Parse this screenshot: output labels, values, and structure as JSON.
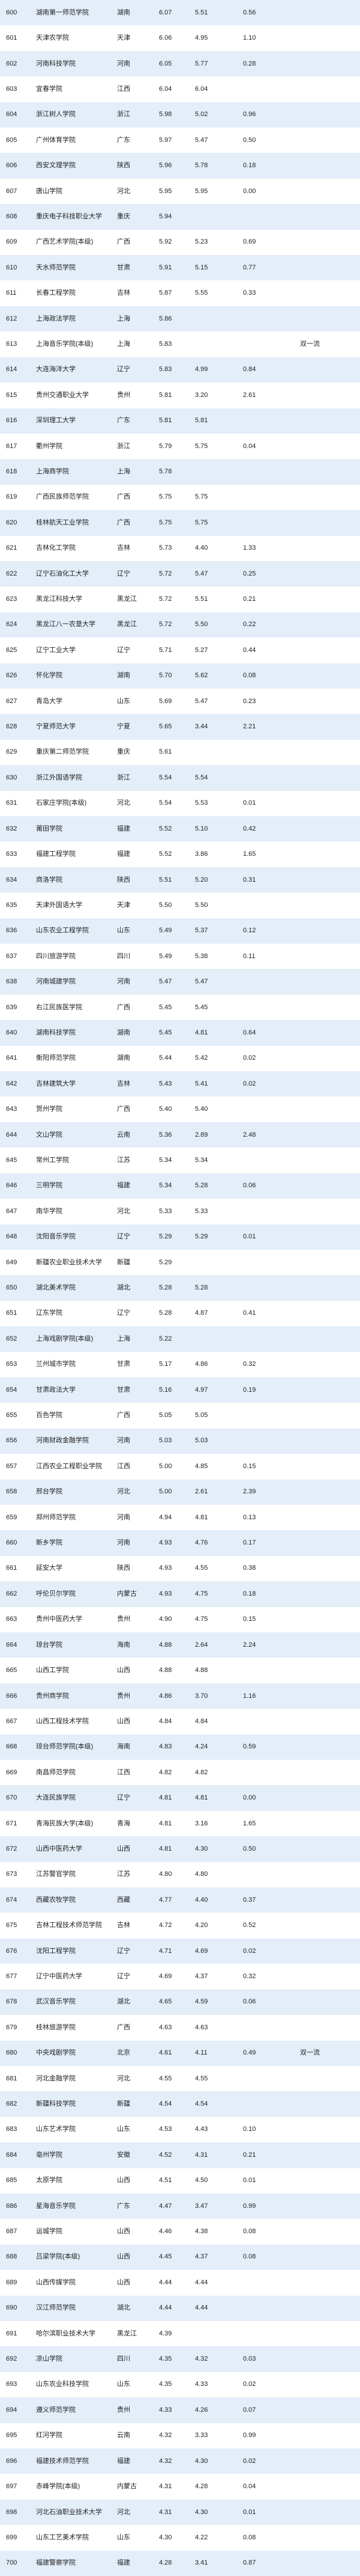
{
  "rows": [
    {
      "rank": "600",
      "name": "湖南第一师范学院",
      "province": "湖南",
      "s1": "6.07",
      "s2": "5.51",
      "s3": "0.56",
      "tag": ""
    },
    {
      "rank": "601",
      "name": "天津农学院",
      "province": "天津",
      "s1": "6.06",
      "s2": "4.95",
      "s3": "1.10",
      "tag": ""
    },
    {
      "rank": "602",
      "name": "河南科技学院",
      "province": "河南",
      "s1": "6.05",
      "s2": "5.77",
      "s3": "0.28",
      "tag": ""
    },
    {
      "rank": "603",
      "name": "宜春学院",
      "province": "江西",
      "s1": "6.04",
      "s2": "6.04",
      "s3": "",
      "tag": ""
    },
    {
      "rank": "604",
      "name": "浙江树人学院",
      "province": "浙江",
      "s1": "5.98",
      "s2": "5.02",
      "s3": "0.96",
      "tag": ""
    },
    {
      "rank": "605",
      "name": "广州体育学院",
      "province": "广东",
      "s1": "5.97",
      "s2": "5.47",
      "s3": "0.50",
      "tag": ""
    },
    {
      "rank": "606",
      "name": "西安文理学院",
      "province": "陕西",
      "s1": "5.96",
      "s2": "5.78",
      "s3": "0.18",
      "tag": ""
    },
    {
      "rank": "607",
      "name": "唐山学院",
      "province": "河北",
      "s1": "5.95",
      "s2": "5.95",
      "s3": "0.00",
      "tag": ""
    },
    {
      "rank": "608",
      "name": "重庆电子科技职业大学",
      "province": "重庆",
      "s1": "5.94",
      "s2": "",
      "s3": "",
      "tag": ""
    },
    {
      "rank": "609",
      "name": "广西艺术学院(本级)",
      "province": "广西",
      "s1": "5.92",
      "s2": "5.23",
      "s3": "0.69",
      "tag": ""
    },
    {
      "rank": "610",
      "name": "天水师范学院",
      "province": "甘肃",
      "s1": "5.91",
      "s2": "5.15",
      "s3": "0.77",
      "tag": ""
    },
    {
      "rank": "611",
      "name": "长春工程学院",
      "province": "吉林",
      "s1": "5.87",
      "s2": "5.55",
      "s3": "0.33",
      "tag": ""
    },
    {
      "rank": "612",
      "name": "上海政法学院",
      "province": "上海",
      "s1": "5.86",
      "s2": "",
      "s3": "",
      "tag": ""
    },
    {
      "rank": "613",
      "name": "上海音乐学院(本级)",
      "province": "上海",
      "s1": "5.83",
      "s2": "",
      "s3": "",
      "tag": "双一流"
    },
    {
      "rank": "614",
      "name": "大连海洋大学",
      "province": "辽宁",
      "s1": "5.83",
      "s2": "4.99",
      "s3": "0.84",
      "tag": ""
    },
    {
      "rank": "615",
      "name": "贵州交通职业大学",
      "province": "贵州",
      "s1": "5.81",
      "s2": "3.20",
      "s3": "2.61",
      "tag": ""
    },
    {
      "rank": "616",
      "name": "深圳理工大学",
      "province": "广东",
      "s1": "5.81",
      "s2": "5.81",
      "s3": "",
      "tag": ""
    },
    {
      "rank": "617",
      "name": "衢州学院",
      "province": "浙江",
      "s1": "5.79",
      "s2": "5.75",
      "s3": "0.04",
      "tag": ""
    },
    {
      "rank": "618",
      "name": "上海商学院",
      "province": "上海",
      "s1": "5.78",
      "s2": "",
      "s3": "",
      "tag": ""
    },
    {
      "rank": "619",
      "name": "广西民族师范学院",
      "province": "广西",
      "s1": "5.75",
      "s2": "5.75",
      "s3": "",
      "tag": ""
    },
    {
      "rank": "620",
      "name": "桂林航天工业学院",
      "province": "广西",
      "s1": "5.75",
      "s2": "5.75",
      "s3": "",
      "tag": ""
    },
    {
      "rank": "621",
      "name": "吉林化工学院",
      "province": "吉林",
      "s1": "5.73",
      "s2": "4.40",
      "s3": "1.33",
      "tag": ""
    },
    {
      "rank": "622",
      "name": "辽宁石油化工大学",
      "province": "辽宁",
      "s1": "5.72",
      "s2": "5.47",
      "s3": "0.25",
      "tag": ""
    },
    {
      "rank": "623",
      "name": "黑龙江科技大学",
      "province": "黑龙江",
      "s1": "5.72",
      "s2": "5.51",
      "s3": "0.21",
      "tag": ""
    },
    {
      "rank": "624",
      "name": "黑龙江八一农垦大学",
      "province": "黑龙江",
      "s1": "5.72",
      "s2": "5.50",
      "s3": "0.22",
      "tag": ""
    },
    {
      "rank": "625",
      "name": "辽宁工业大学",
      "province": "辽宁",
      "s1": "5.71",
      "s2": "5.27",
      "s3": "0.44",
      "tag": ""
    },
    {
      "rank": "626",
      "name": "怀化学院",
      "province": "湖南",
      "s1": "5.70",
      "s2": "5.62",
      "s3": "0.08",
      "tag": ""
    },
    {
      "rank": "627",
      "name": "青岛大学",
      "province": "山东",
      "s1": "5.69",
      "s2": "5.47",
      "s3": "0.23",
      "tag": ""
    },
    {
      "rank": "628",
      "name": "宁夏师范大学",
      "province": "宁夏",
      "s1": "5.65",
      "s2": "3.44",
      "s3": "2.21",
      "tag": ""
    },
    {
      "rank": "629",
      "name": "重庆第二师范学院",
      "province": "重庆",
      "s1": "5.61",
      "s2": "",
      "s3": "",
      "tag": ""
    },
    {
      "rank": "630",
      "name": "浙江外国语学院",
      "province": "浙江",
      "s1": "5.54",
      "s2": "5.54",
      "s3": "",
      "tag": ""
    },
    {
      "rank": "631",
      "name": "石家庄学院(本级)",
      "province": "河北",
      "s1": "5.54",
      "s2": "5.53",
      "s3": "0.01",
      "tag": ""
    },
    {
      "rank": "632",
      "name": "莆田学院",
      "province": "福建",
      "s1": "5.52",
      "s2": "5.10",
      "s3": "0.42",
      "tag": ""
    },
    {
      "rank": "633",
      "name": "福建工程学院",
      "province": "福建",
      "s1": "5.52",
      "s2": "3.86",
      "s3": "1.65",
      "tag": ""
    },
    {
      "rank": "634",
      "name": "商洛学院",
      "province": "陕西",
      "s1": "5.51",
      "s2": "5.20",
      "s3": "0.31",
      "tag": ""
    },
    {
      "rank": "635",
      "name": "天津外国语大学",
      "province": "天津",
      "s1": "5.50",
      "s2": "5.50",
      "s3": "",
      "tag": ""
    },
    {
      "rank": "636",
      "name": "山东农业工程学院",
      "province": "山东",
      "s1": "5.49",
      "s2": "5.37",
      "s3": "0.12",
      "tag": ""
    },
    {
      "rank": "637",
      "name": "四川旅游学院",
      "province": "四川",
      "s1": "5.49",
      "s2": "5.38",
      "s3": "0.11",
      "tag": ""
    },
    {
      "rank": "638",
      "name": "河南城建学院",
      "province": "河南",
      "s1": "5.47",
      "s2": "5.47",
      "s3": "",
      "tag": ""
    },
    {
      "rank": "639",
      "name": "右江民族医学院",
      "province": "广西",
      "s1": "5.45",
      "s2": "5.45",
      "s3": "",
      "tag": ""
    },
    {
      "rank": "640",
      "name": "湖南科技学院",
      "province": "湖南",
      "s1": "5.45",
      "s2": "4.81",
      "s3": "0.64",
      "tag": ""
    },
    {
      "rank": "641",
      "name": "衡阳师范学院",
      "province": "湖南",
      "s1": "5.44",
      "s2": "5.42",
      "s3": "0.02",
      "tag": ""
    },
    {
      "rank": "642",
      "name": "吉林建筑大学",
      "province": "吉林",
      "s1": "5.43",
      "s2": "5.41",
      "s3": "0.02",
      "tag": ""
    },
    {
      "rank": "643",
      "name": "贺州学院",
      "province": "广西",
      "s1": "5.40",
      "s2": "5.40",
      "s3": "",
      "tag": ""
    },
    {
      "rank": "644",
      "name": "文山学院",
      "province": "云南",
      "s1": "5.36",
      "s2": "2.89",
      "s3": "2.48",
      "tag": ""
    },
    {
      "rank": "645",
      "name": "常州工学院",
      "province": "江苏",
      "s1": "5.34",
      "s2": "5.34",
      "s3": "",
      "tag": ""
    },
    {
      "rank": "646",
      "name": "三明学院",
      "province": "福建",
      "s1": "5.34",
      "s2": "5.28",
      "s3": "0.06",
      "tag": ""
    },
    {
      "rank": "647",
      "name": "南华学院",
      "province": "河北",
      "s1": "5.33",
      "s2": "5.33",
      "s3": "",
      "tag": ""
    },
    {
      "rank": "648",
      "name": "沈阳音乐学院",
      "province": "辽宁",
      "s1": "5.29",
      "s2": "5.29",
      "s3": "0.01",
      "tag": ""
    },
    {
      "rank": "649",
      "name": "新疆农业职业技术大学",
      "province": "新疆",
      "s1": "5.29",
      "s2": "",
      "s3": "",
      "tag": ""
    },
    {
      "rank": "650",
      "name": "湖北美术学院",
      "province": "湖北",
      "s1": "5.28",
      "s2": "5.28",
      "s3": "",
      "tag": ""
    },
    {
      "rank": "651",
      "name": "辽东学院",
      "province": "辽宁",
      "s1": "5.28",
      "s2": "4.87",
      "s3": "0.41",
      "tag": ""
    },
    {
      "rank": "652",
      "name": "上海戏剧学院(本级)",
      "province": "上海",
      "s1": "5.22",
      "s2": "",
      "s3": "",
      "tag": ""
    },
    {
      "rank": "653",
      "name": "兰州城市学院",
      "province": "甘肃",
      "s1": "5.17",
      "s2": "4.86",
      "s3": "0.32",
      "tag": ""
    },
    {
      "rank": "654",
      "name": "甘肃政法大学",
      "province": "甘肃",
      "s1": "5.16",
      "s2": "4.97",
      "s3": "0.19",
      "tag": ""
    },
    {
      "rank": "655",
      "name": "百色学院",
      "province": "广西",
      "s1": "5.05",
      "s2": "5.05",
      "s3": "",
      "tag": ""
    },
    {
      "rank": "656",
      "name": "河南财政金融学院",
      "province": "河南",
      "s1": "5.03",
      "s2": "5.03",
      "s3": "",
      "tag": ""
    },
    {
      "rank": "657",
      "name": "江西农业工程职业学院",
      "province": "江西",
      "s1": "5.00",
      "s2": "4.85",
      "s3": "0.15",
      "tag": ""
    },
    {
      "rank": "658",
      "name": "邢台学院",
      "province": "河北",
      "s1": "5.00",
      "s2": "2.61",
      "s3": "2.39",
      "tag": ""
    },
    {
      "rank": "659",
      "name": "郑州师范学院",
      "province": "河南",
      "s1": "4.94",
      "s2": "4.81",
      "s3": "0.13",
      "tag": ""
    },
    {
      "rank": "660",
      "name": "新乡学院",
      "province": "河南",
      "s1": "4.93",
      "s2": "4.76",
      "s3": "0.17",
      "tag": ""
    },
    {
      "rank": "661",
      "name": "延安大学",
      "province": "陕西",
      "s1": "4.93",
      "s2": "4.55",
      "s3": "0.38",
      "tag": ""
    },
    {
      "rank": "662",
      "name": "呼伦贝尔学院",
      "province": "内蒙古",
      "s1": "4.93",
      "s2": "4.75",
      "s3": "0.18",
      "tag": ""
    },
    {
      "rank": "663",
      "name": "贵州中医药大学",
      "province": "贵州",
      "s1": "4.90",
      "s2": "4.75",
      "s3": "0.15",
      "tag": ""
    },
    {
      "rank": "664",
      "name": "琼台学院",
      "province": "海南",
      "s1": "4.88",
      "s2": "2.64",
      "s3": "2.24",
      "tag": ""
    },
    {
      "rank": "665",
      "name": "山西工学院",
      "province": "山西",
      "s1": "4.88",
      "s2": "4.88",
      "s3": "",
      "tag": ""
    },
    {
      "rank": "666",
      "name": "贵州商学院",
      "province": "贵州",
      "s1": "4.86",
      "s2": "3.70",
      "s3": "1.16",
      "tag": ""
    },
    {
      "rank": "667",
      "name": "山西工程技术学院",
      "province": "山西",
      "s1": "4.84",
      "s2": "4.84",
      "s3": "",
      "tag": ""
    },
    {
      "rank": "668",
      "name": "琼台师范学院(本级)",
      "province": "海南",
      "s1": "4.83",
      "s2": "4.24",
      "s3": "0.59",
      "tag": ""
    },
    {
      "rank": "669",
      "name": "南昌师范学院",
      "province": "江西",
      "s1": "4.82",
      "s2": "4.82",
      "s3": "",
      "tag": ""
    },
    {
      "rank": "670",
      "name": "大连民族学院",
      "province": "辽宁",
      "s1": "4.81",
      "s2": "4.81",
      "s3": "0.00",
      "tag": ""
    },
    {
      "rank": "671",
      "name": "青海民族大学(本级)",
      "province": "青海",
      "s1": "4.81",
      "s2": "3.16",
      "s3": "1.65",
      "tag": ""
    },
    {
      "rank": "672",
      "name": "山西中医药大学",
      "province": "山西",
      "s1": "4.81",
      "s2": "4.30",
      "s3": "0.50",
      "tag": ""
    },
    {
      "rank": "673",
      "name": "江苏警官学院",
      "province": "江苏",
      "s1": "4.80",
      "s2": "4.80",
      "s3": "",
      "tag": ""
    },
    {
      "rank": "674",
      "name": "西藏农牧学院",
      "province": "西藏",
      "s1": "4.77",
      "s2": "4.40",
      "s3": "0.37",
      "tag": ""
    },
    {
      "rank": "675",
      "name": "吉林工程技术师范学院",
      "province": "吉林",
      "s1": "4.72",
      "s2": "4.20",
      "s3": "0.52",
      "tag": ""
    },
    {
      "rank": "676",
      "name": "沈阳工程学院",
      "province": "辽宁",
      "s1": "4.71",
      "s2": "4.69",
      "s3": "0.02",
      "tag": ""
    },
    {
      "rank": "677",
      "name": "辽宁中医药大学",
      "province": "辽宁",
      "s1": "4.69",
      "s2": "4.37",
      "s3": "0.32",
      "tag": ""
    },
    {
      "rank": "678",
      "name": "武汉音乐学院",
      "province": "湖北",
      "s1": "4.65",
      "s2": "4.59",
      "s3": "0.06",
      "tag": ""
    },
    {
      "rank": "679",
      "name": "桂林旅游学院",
      "province": "广西",
      "s1": "4.63",
      "s2": "4.63",
      "s3": "",
      "tag": ""
    },
    {
      "rank": "680",
      "name": "中央戏剧学院",
      "province": "北京",
      "s1": "4.61",
      "s2": "4.11",
      "s3": "0.49",
      "tag": "双一流"
    },
    {
      "rank": "681",
      "name": "河北金融学院",
      "province": "河北",
      "s1": "4.55",
      "s2": "4.55",
      "s3": "",
      "tag": ""
    },
    {
      "rank": "682",
      "name": "新疆科技学院",
      "province": "新疆",
      "s1": "4.54",
      "s2": "4.54",
      "s3": "",
      "tag": ""
    },
    {
      "rank": "683",
      "name": "山东艺术学院",
      "province": "山东",
      "s1": "4.53",
      "s2": "4.43",
      "s3": "0.10",
      "tag": ""
    },
    {
      "rank": "684",
      "name": "亳州学院",
      "province": "安徽",
      "s1": "4.52",
      "s2": "4.31",
      "s3": "0.21",
      "tag": ""
    },
    {
      "rank": "685",
      "name": "太原学院",
      "province": "山西",
      "s1": "4.51",
      "s2": "4.50",
      "s3": "0.01",
      "tag": ""
    },
    {
      "rank": "686",
      "name": "星海音乐学院",
      "province": "广东",
      "s1": "4.47",
      "s2": "3.47",
      "s3": "0.99",
      "tag": ""
    },
    {
      "rank": "687",
      "name": "运城学院",
      "province": "山西",
      "s1": "4.46",
      "s2": "4.38",
      "s3": "0.08",
      "tag": ""
    },
    {
      "rank": "688",
      "name": "吕梁学院(本级)",
      "province": "山西",
      "s1": "4.45",
      "s2": "4.37",
      "s3": "0.08",
      "tag": ""
    },
    {
      "rank": "689",
      "name": "山西传媒学院",
      "province": "山西",
      "s1": "4.44",
      "s2": "4.44",
      "s3": "",
      "tag": ""
    },
    {
      "rank": "690",
      "name": "汉江师范学院",
      "province": "湖北",
      "s1": "4.44",
      "s2": "4.44",
      "s3": "",
      "tag": ""
    },
    {
      "rank": "691",
      "name": "哈尔滨职业技术大学",
      "province": "黑龙江",
      "s1": "4.39",
      "s2": "",
      "s3": "",
      "tag": ""
    },
    {
      "rank": "692",
      "name": "凉山学院",
      "province": "四川",
      "s1": "4.35",
      "s2": "4.32",
      "s3": "0.03",
      "tag": ""
    },
    {
      "rank": "693",
      "name": "山东农业科技学院",
      "province": "山东",
      "s1": "4.35",
      "s2": "4.33",
      "s3": "0.02",
      "tag": ""
    },
    {
      "rank": "694",
      "name": "遵义师范学院",
      "province": "贵州",
      "s1": "4.33",
      "s2": "4.26",
      "s3": "0.07",
      "tag": ""
    },
    {
      "rank": "695",
      "name": "红河学院",
      "province": "云南",
      "s1": "4.32",
      "s2": "3.33",
      "s3": "0.99",
      "tag": ""
    },
    {
      "rank": "696",
      "name": "福建技术师范学院",
      "province": "福建",
      "s1": "4.32",
      "s2": "4.30",
      "s3": "0.02",
      "tag": ""
    },
    {
      "rank": "697",
      "name": "赤峰学院(本级)",
      "province": "内蒙古",
      "s1": "4.31",
      "s2": "4.28",
      "s3": "0.04",
      "tag": ""
    },
    {
      "rank": "698",
      "name": "河北石油职业技术大学",
      "province": "河北",
      "s1": "4.31",
      "s2": "4.30",
      "s3": "0.01",
      "tag": ""
    },
    {
      "rank": "699",
      "name": "山东工艺美术学院",
      "province": "山东",
      "s1": "4.30",
      "s2": "4.22",
      "s3": "0.08",
      "tag": ""
    },
    {
      "rank": "700",
      "name": "福建警察学院",
      "province": "福建",
      "s1": "4.28",
      "s2": "3.41",
      "s3": "0.87",
      "tag": ""
    }
  ]
}
